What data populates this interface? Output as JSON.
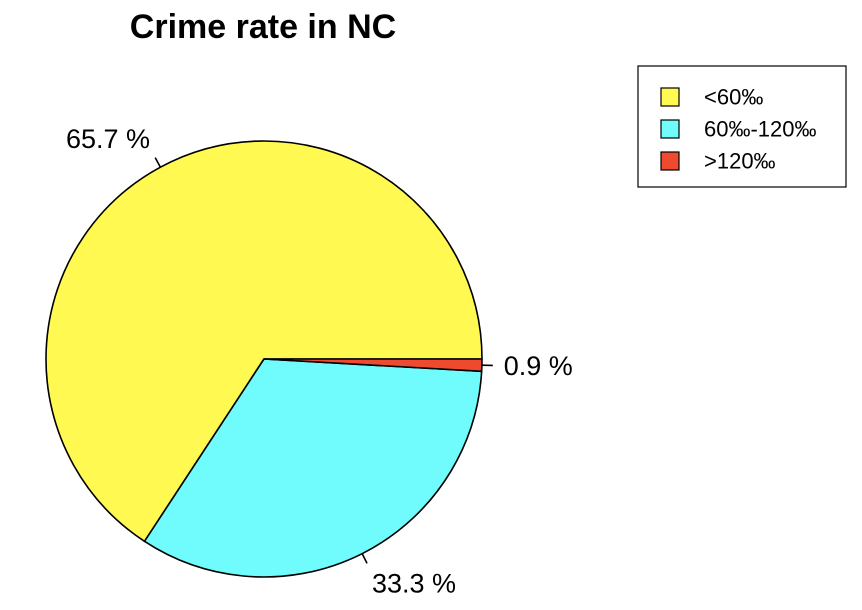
{
  "chart_data": {
    "type": "pie",
    "title": "Crime rate in NC",
    "slices": [
      {
        "name": "<60‰",
        "value": 65.7,
        "label": "65.7 %",
        "color": "#FFF952"
      },
      {
        "name": "60‰-120‰",
        "value": 33.3,
        "label": "33.3 %",
        "color": "#70FBFC"
      },
      {
        "name": ">120‰",
        "value": 0.9,
        "label": "0.9 %",
        "color": "#EE4A2F"
      }
    ],
    "direction": "counterclockwise",
    "start_angle_deg": 0,
    "legend": {
      "position": "top-right",
      "entries": [
        "<60‰",
        "60‰-120‰",
        ">120‰"
      ]
    }
  }
}
